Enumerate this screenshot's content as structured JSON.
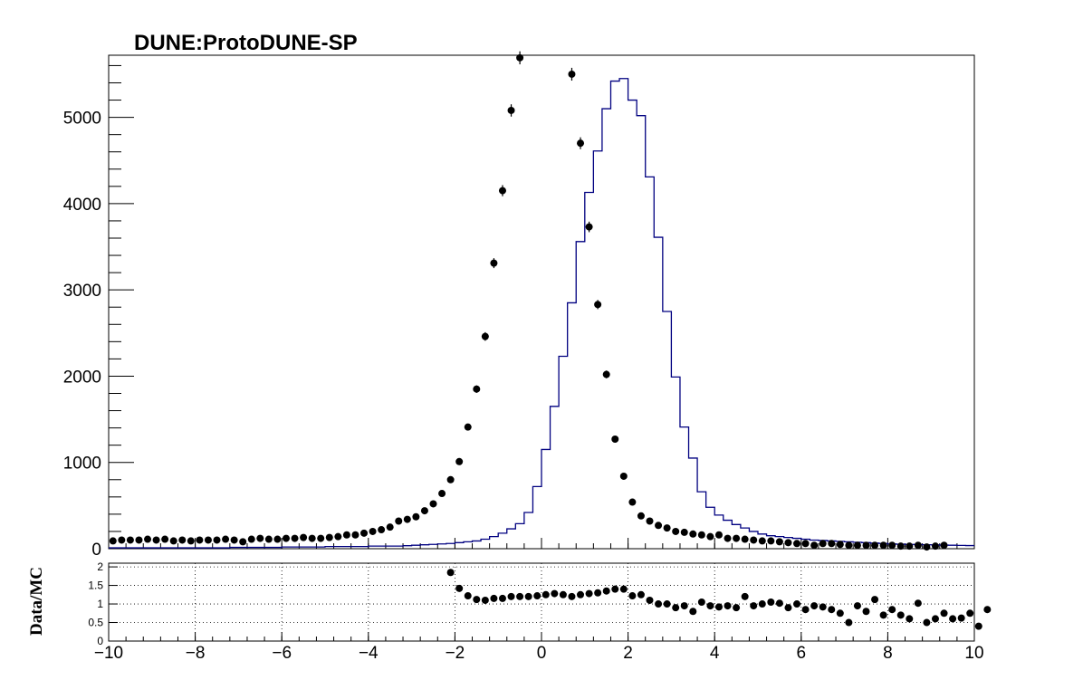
{
  "title": "DUNE:ProtoDUNE-SP",
  "ratio_ylabel": "Data/MC",
  "colors": {
    "mc_line": "#000080",
    "data_marker": "#000000",
    "grid": "#000000",
    "frame": "#000000"
  },
  "chart_data": [
    {
      "type": "histogram",
      "panel": "main",
      "xlim": [
        -10,
        10
      ],
      "ylim": [
        0,
        5720
      ],
      "x_ticks": [
        -10,
        -8,
        -6,
        -4,
        -2,
        0,
        2,
        4,
        6,
        8,
        10
      ],
      "y_ticks": [
        0,
        1000,
        2000,
        3000,
        4000,
        5000
      ],
      "y_tick_labels": [
        "0",
        "1000",
        "2000",
        "3000",
        "4000",
        "5000"
      ],
      "bin_width": 0.2,
      "series": [
        {
          "kind": "mc_step",
          "bin_edges_start": -10,
          "values": [
            10,
            10,
            10,
            10,
            10,
            10,
            10,
            10,
            10,
            10,
            10,
            10,
            10,
            10,
            15,
            15,
            15,
            15,
            15,
            15,
            20,
            20,
            20,
            20,
            20,
            25,
            25,
            25,
            25,
            25,
            30,
            30,
            30,
            30,
            35,
            40,
            45,
            50,
            55,
            60,
            70,
            80,
            90,
            110,
            140,
            180,
            230,
            290,
            420,
            720,
            1150,
            1650,
            2230,
            2850,
            3560,
            4130,
            4610,
            5100,
            5420,
            5450,
            5200,
            5020,
            4310,
            3610,
            2750,
            1990,
            1410,
            1050,
            660,
            480,
            390,
            330,
            280,
            240,
            200,
            170,
            150,
            140,
            130,
            120,
            110,
            100,
            95,
            90,
            85,
            80,
            75,
            70,
            65,
            60,
            55,
            52,
            50,
            48,
            46,
            44,
            42,
            40,
            38,
            36
          ]
        },
        {
          "kind": "data_points",
          "x_centers_start": -9.9,
          "values": [
            90,
            100,
            100,
            100,
            110,
            100,
            110,
            90,
            100,
            90,
            100,
            100,
            100,
            110,
            100,
            80,
            110,
            120,
            110,
            110,
            120,
            120,
            130,
            120,
            120,
            130,
            140,
            160,
            160,
            180,
            200,
            220,
            250,
            320,
            340,
            370,
            440,
            520,
            640,
            800,
            1010,
            1410,
            1850,
            2460,
            3310,
            4150,
            5080,
            5690,
            null,
            null,
            null,
            null,
            null,
            5500,
            4700,
            3730,
            2830,
            2020,
            1270,
            840,
            540,
            380,
            320,
            270,
            240,
            200,
            190,
            170,
            160,
            140,
            160,
            120,
            120,
            110,
            100,
            90,
            90,
            80,
            70,
            60,
            60,
            40,
            60,
            60,
            50,
            40,
            40,
            40,
            40,
            40,
            40,
            30,
            30,
            40,
            20,
            30,
            40
          ]
        }
      ]
    },
    {
      "type": "scatter",
      "panel": "ratio",
      "ylabel": "Data/MC",
      "xlim": [
        -10,
        10
      ],
      "ylim": [
        0,
        2.1
      ],
      "x_ticks": [
        -10,
        -8,
        -6,
        -4,
        -2,
        0,
        2,
        4,
        6,
        8,
        10
      ],
      "x_tick_labels": [
        "−10",
        "−8",
        "−6",
        "−4",
        "−2",
        "0",
        "2",
        "4",
        "6",
        "8",
        "10"
      ],
      "y_ticks": [
        0,
        0.5,
        1,
        1.5,
        2
      ],
      "y_tick_labels": [
        "0",
        "0.5",
        "1",
        "1.5",
        "2"
      ],
      "grid": true,
      "x_start": -2.1,
      "step": 0.2,
      "values": [
        1.85,
        1.42,
        1.22,
        1.12,
        1.1,
        1.15,
        1.15,
        1.2,
        1.2,
        1.2,
        1.22,
        1.25,
        1.28,
        1.25,
        1.2,
        1.25,
        1.28,
        1.3,
        1.35,
        1.4,
        1.4,
        1.22,
        1.25,
        1.1,
        1.0,
        1.0,
        0.9,
        0.95,
        0.8,
        1.05,
        0.95,
        0.92,
        0.95,
        0.9,
        1.2,
        0.95,
        1.0,
        1.05,
        1.02,
        0.9,
        1.0,
        0.85,
        0.95,
        0.92,
        0.85,
        0.75,
        0.5,
        0.95,
        0.8,
        1.12,
        0.7,
        0.85,
        0.7,
        0.6,
        1.02,
        0.5,
        0.6,
        0.75,
        0.6,
        0.62,
        0.75,
        0.4,
        0.85
      ]
    }
  ]
}
